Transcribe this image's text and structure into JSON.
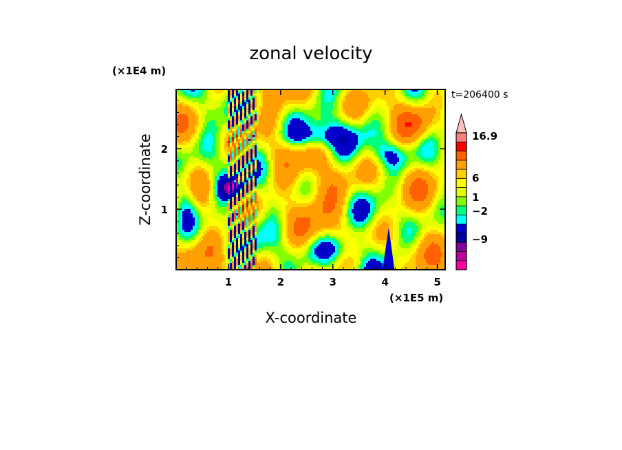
{
  "chart_data": {
    "type": "heatmap",
    "title": "zonal velocity",
    "time_label": "t=206400 s",
    "xlabel": "X-coordinate",
    "ylabel": "Z-coordinate",
    "x_unit": "(×1E5 m)",
    "y_unit": "(×1E4 m)",
    "xlim": [
      0,
      5.15
    ],
    "ylim": [
      0,
      2.98
    ],
    "x_ticks": [
      "1",
      "2",
      "3",
      "4",
      "5"
    ],
    "y_ticks": [
      "1",
      "2"
    ],
    "colorbar_labels": [
      "16.9",
      "6",
      "1",
      "−2",
      "−9"
    ],
    "colorbar_levels": [
      -15,
      -12,
      -9,
      -6,
      -3,
      -2,
      -1,
      0,
      1,
      2,
      3,
      6,
      9,
      12,
      16.9
    ],
    "colorbar_colors": [
      "#ff00a0",
      "#c000a0",
      "#8000a0",
      "#0000a0",
      "#0000c8",
      "#00ffff",
      "#00ff80",
      "#80ff00",
      "#e0ff00",
      "#ffff00",
      "#ffd000",
      "#ffa000",
      "#ff6000",
      "#ff0000",
      "#ff8080",
      "#ffc0c0"
    ],
    "grid": false
  }
}
